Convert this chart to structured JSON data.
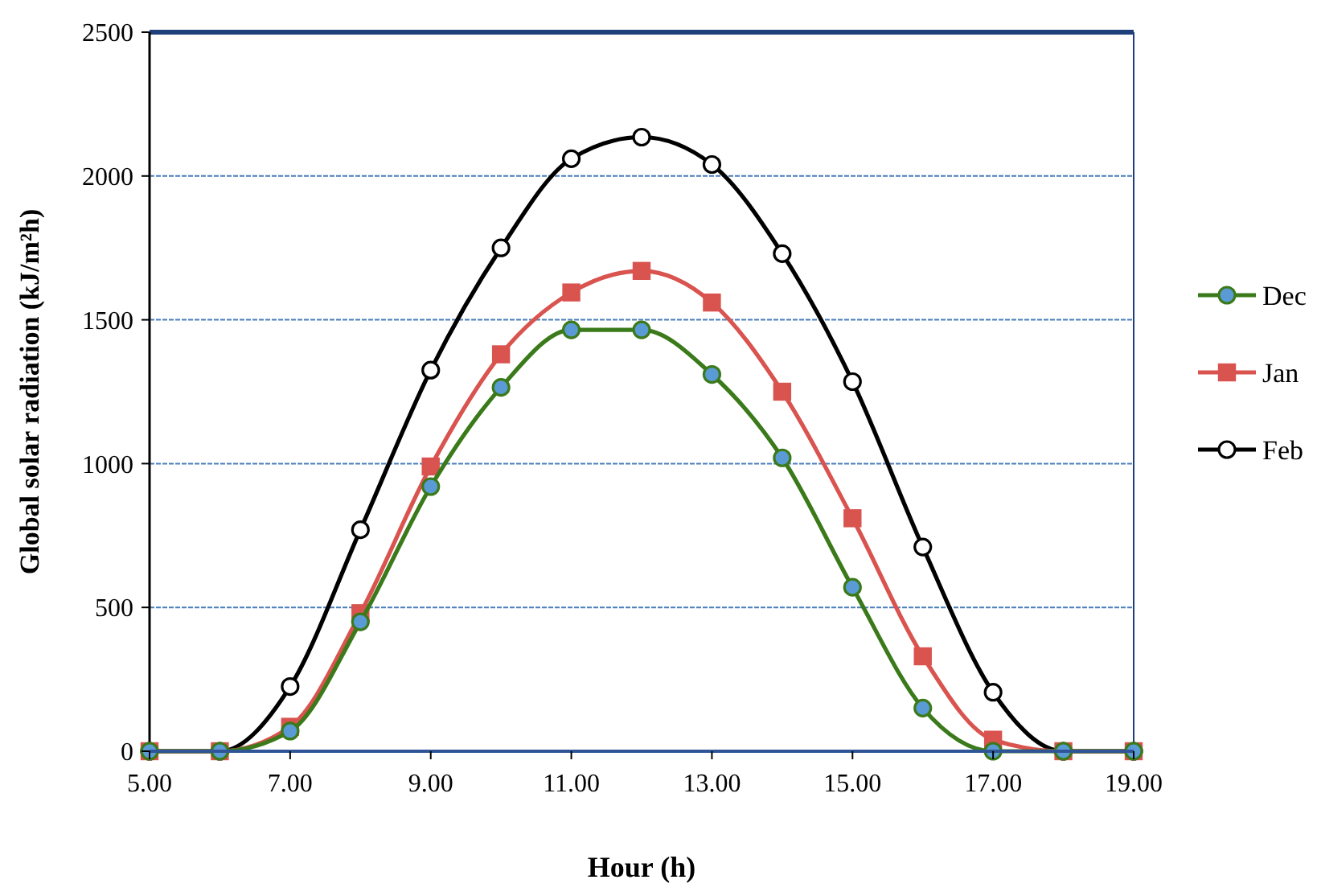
{
  "chart_data": {
    "type": "line",
    "xlabel": "Hour (h)",
    "ylabel": "Global solar radiation (kJ/m²h)",
    "x": [
      5,
      6,
      7,
      8,
      9,
      10,
      11,
      12,
      13,
      14,
      15,
      16,
      17,
      18,
      19
    ],
    "series": [
      {
        "name": "Dec",
        "color": "#3b7a1a",
        "marker": "circle",
        "values": [
          0,
          0,
          70,
          450,
          920,
          1265,
          1465,
          1465,
          1310,
          1020,
          570,
          150,
          0,
          0,
          0
        ]
      },
      {
        "name": "Jan",
        "color": "#d9534f",
        "marker": "square",
        "values": [
          0,
          0,
          85,
          480,
          990,
          1380,
          1595,
          1670,
          1560,
          1250,
          810,
          330,
          40,
          0,
          0
        ]
      },
      {
        "name": "Feb",
        "color": "#000000",
        "marker": "circle",
        "values": [
          0,
          0,
          225,
          770,
          1325,
          1750,
          2060,
          2135,
          2040,
          1730,
          1285,
          710,
          205,
          0,
          0
        ]
      }
    ],
    "xlim": [
      5,
      19
    ],
    "xticks": [
      {
        "value": 5,
        "label": "5.00"
      },
      {
        "value": 7,
        "label": "7.00"
      },
      {
        "value": 9,
        "label": "9.00"
      },
      {
        "value": 11,
        "label": "11.00"
      },
      {
        "value": 13,
        "label": "13.00"
      },
      {
        "value": 15,
        "label": "15.00"
      },
      {
        "value": 17,
        "label": "17.00"
      },
      {
        "value": 19,
        "label": "19.00"
      }
    ],
    "ylim": [
      0,
      2500
    ],
    "yticks": [
      0,
      500,
      1000,
      1500,
      2000,
      2500
    ],
    "grid": "y",
    "legend": "right",
    "line_style": "solid"
  }
}
